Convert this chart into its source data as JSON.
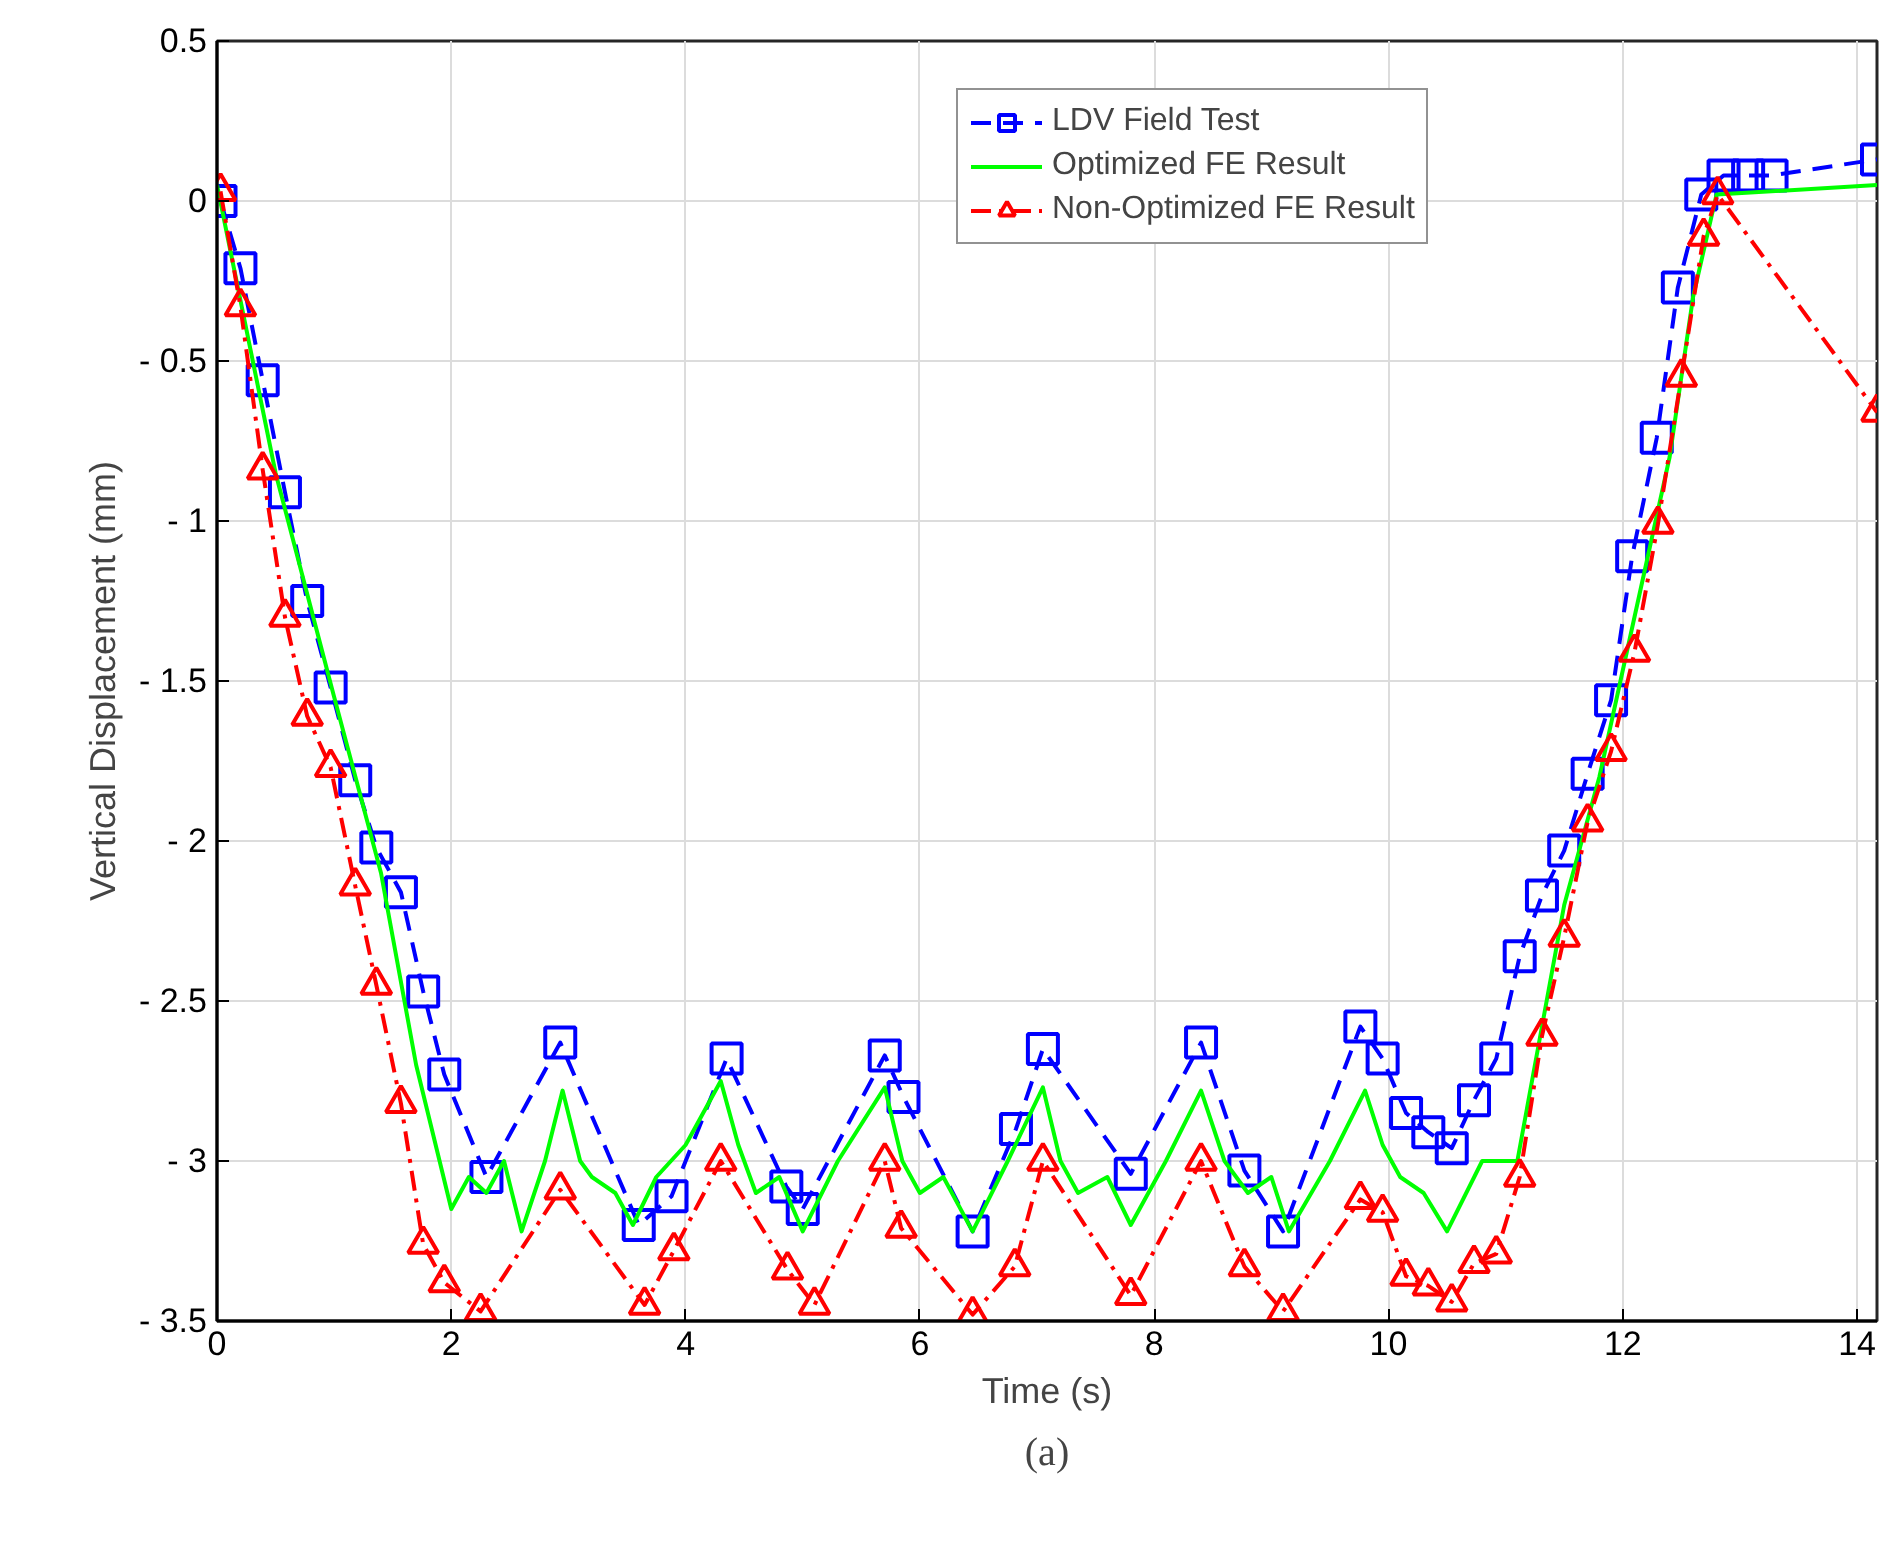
{
  "chart_data": {
    "type": "line",
    "xlabel": "Time (s)",
    "ylabel": "Vertical Displacement (mm)",
    "xlim": [
      0,
      14.17
    ],
    "ylim": [
      -3.5,
      0.5
    ],
    "xticks": [
      0,
      2,
      4,
      6,
      8,
      10,
      12,
      14
    ],
    "yticks": [
      {
        "value": -3.5,
        "label": "- 3.5"
      },
      {
        "value": -3,
        "label": "- 3"
      },
      {
        "value": -2.5,
        "label": "- 2.5"
      },
      {
        "value": -2,
        "label": "- 2"
      },
      {
        "value": -1.5,
        "label": "- 1.5"
      },
      {
        "value": -1,
        "label": "- 1"
      },
      {
        "value": -0.5,
        "label": "- 0.5"
      },
      0,
      0.5
    ],
    "grid": true,
    "legend": "top right",
    "annotations": [
      "(a)"
    ],
    "series": [
      {
        "name": "LDV Field Test",
        "color": "#0000ff",
        "marker": "square",
        "line_style": "dashed",
        "x": [
          0.03,
          0.2,
          0.39,
          0.58,
          0.77,
          0.97,
          1.18,
          1.36,
          1.57,
          1.76,
          1.94,
          2.3,
          2.93,
          3.6,
          3.88,
          4.35,
          4.86,
          5.0,
          5.7,
          5.86,
          6.45,
          6.82,
          7.05,
          7.8,
          8.4,
          8.77,
          9.1,
          9.76,
          9.95,
          10.15,
          10.34,
          10.54,
          10.73,
          10.92,
          11.12,
          11.31,
          11.5,
          11.7,
          11.9,
          12.08,
          12.29,
          12.47,
          12.67,
          12.86,
          13.07,
          13.27,
          14.17
        ],
        "values": [
          0,
          -0.21,
          -0.56,
          -0.91,
          -1.25,
          -1.52,
          -1.81,
          -2.02,
          -2.16,
          -2.47,
          -2.73,
          -3.05,
          -2.63,
          -3.2,
          -3.11,
          -2.68,
          -3.08,
          -3.15,
          -2.67,
          -2.8,
          -3.22,
          -2.9,
          -2.65,
          -3.04,
          -2.63,
          -3.03,
          -3.22,
          -2.58,
          -2.68,
          -2.85,
          -2.91,
          -2.96,
          -2.81,
          -2.68,
          -2.36,
          -2.17,
          -2.03,
          -1.79,
          -1.56,
          -1.11,
          -0.74,
          -0.27,
          0.02,
          0.08,
          0.08,
          0.08,
          0.13
        ]
      },
      {
        "name": "Optimized FE Result",
        "color": "#00ff00",
        "marker": "none",
        "line_style": "solid",
        "x": [
          0,
          0.5,
          1.0,
          1.4,
          1.7,
          1.9,
          2.0,
          2.15,
          2.3,
          2.45,
          2.6,
          2.8,
          2.95,
          3.1,
          3.2,
          3.4,
          3.55,
          3.75,
          4.0,
          4.3,
          4.45,
          4.6,
          4.8,
          5.0,
          5.3,
          5.7,
          5.85,
          6.0,
          6.2,
          6.45,
          6.75,
          7.05,
          7.2,
          7.35,
          7.6,
          7.8,
          8.1,
          8.4,
          8.6,
          8.8,
          9.0,
          9.15,
          9.5,
          9.8,
          9.95,
          10.1,
          10.3,
          10.5,
          10.8,
          11.1,
          11.3,
          11.5,
          11.8,
          12.1,
          12.4,
          12.6,
          12.8,
          14.17
        ],
        "values": [
          0.05,
          -0.85,
          -1.55,
          -2.1,
          -2.7,
          -3.0,
          -3.15,
          -3.05,
          -3.1,
          -3.0,
          -3.22,
          -3.0,
          -2.78,
          -3.0,
          -3.05,
          -3.1,
          -3.2,
          -3.05,
          -2.95,
          -2.75,
          -2.95,
          -3.1,
          -3.05,
          -3.22,
          -3.0,
          -2.77,
          -3.0,
          -3.1,
          -3.05,
          -3.22,
          -3.0,
          -2.77,
          -3.0,
          -3.1,
          -3.05,
          -3.2,
          -3.0,
          -2.78,
          -3.0,
          -3.1,
          -3.05,
          -3.22,
          -3.0,
          -2.78,
          -2.95,
          -3.05,
          -3.1,
          -3.22,
          -3.0,
          -3.0,
          -2.6,
          -2.2,
          -1.8,
          -1.3,
          -0.8,
          -0.3,
          0.02,
          0.05
        ]
      },
      {
        "name": "Non-Optimized FE Result",
        "color": "#ff0000",
        "marker": "triangle",
        "line_style": "dashdot",
        "x": [
          0.03,
          0.2,
          0.39,
          0.58,
          0.77,
          0.97,
          1.18,
          1.36,
          1.57,
          1.76,
          1.94,
          2.25,
          2.93,
          3.65,
          3.9,
          4.3,
          4.87,
          5.1,
          5.7,
          5.84,
          6.45,
          6.81,
          7.05,
          7.8,
          8.4,
          8.77,
          9.1,
          9.76,
          9.95,
          10.15,
          10.34,
          10.54,
          10.73,
          10.92,
          11.12,
          11.31,
          11.5,
          11.7,
          11.9,
          12.1,
          12.3,
          12.5,
          12.69,
          12.81,
          14.17
        ],
        "values": [
          0.03,
          -0.33,
          -0.84,
          -1.3,
          -1.61,
          -1.77,
          -2.14,
          -2.45,
          -2.82,
          -3.26,
          -3.38,
          -3.47,
          -3.09,
          -3.45,
          -3.28,
          -3.0,
          -3.34,
          -3.45,
          -3.0,
          -3.21,
          -3.48,
          -3.33,
          -3.0,
          -3.42,
          -3.0,
          -3.33,
          -3.47,
          -3.12,
          -3.16,
          -3.36,
          -3.39,
          -3.44,
          -3.32,
          -3.29,
          -3.05,
          -2.61,
          -2.3,
          -1.94,
          -1.72,
          -1.41,
          -1.01,
          -0.55,
          -0.11,
          0.02,
          -0.66
        ]
      }
    ]
  }
}
